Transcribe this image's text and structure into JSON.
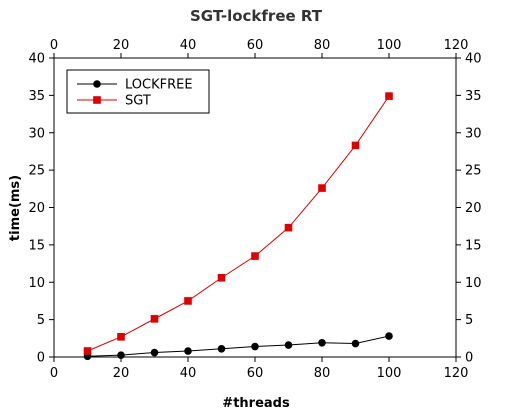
{
  "chart_data": {
    "type": "line",
    "title": "SGT-lockfree RT",
    "xlabel": "#threads",
    "ylabel": "time(ms)",
    "xlim": [
      0,
      120
    ],
    "ylim": [
      0,
      40
    ],
    "xticks": [
      0,
      20,
      40,
      60,
      80,
      100,
      120
    ],
    "yticks": [
      0,
      5,
      10,
      15,
      20,
      25,
      30,
      35,
      40
    ],
    "mirror_axes": true,
    "grid": false,
    "legend_position": "top-left",
    "x": [
      10,
      20,
      30,
      40,
      50,
      60,
      70,
      80,
      90,
      100
    ],
    "series": [
      {
        "name": "LOCKFREE",
        "color": "#000000",
        "marker": "circle",
        "values": [
          0.1,
          0.25,
          0.6,
          0.8,
          1.1,
          1.4,
          1.6,
          1.9,
          1.8,
          2.8
        ]
      },
      {
        "name": "SGT",
        "color": "#dd0000",
        "marker": "square",
        "values": [
          0.8,
          2.7,
          5.1,
          7.5,
          10.6,
          13.5,
          17.3,
          22.6,
          28.3,
          34.9
        ]
      }
    ]
  }
}
